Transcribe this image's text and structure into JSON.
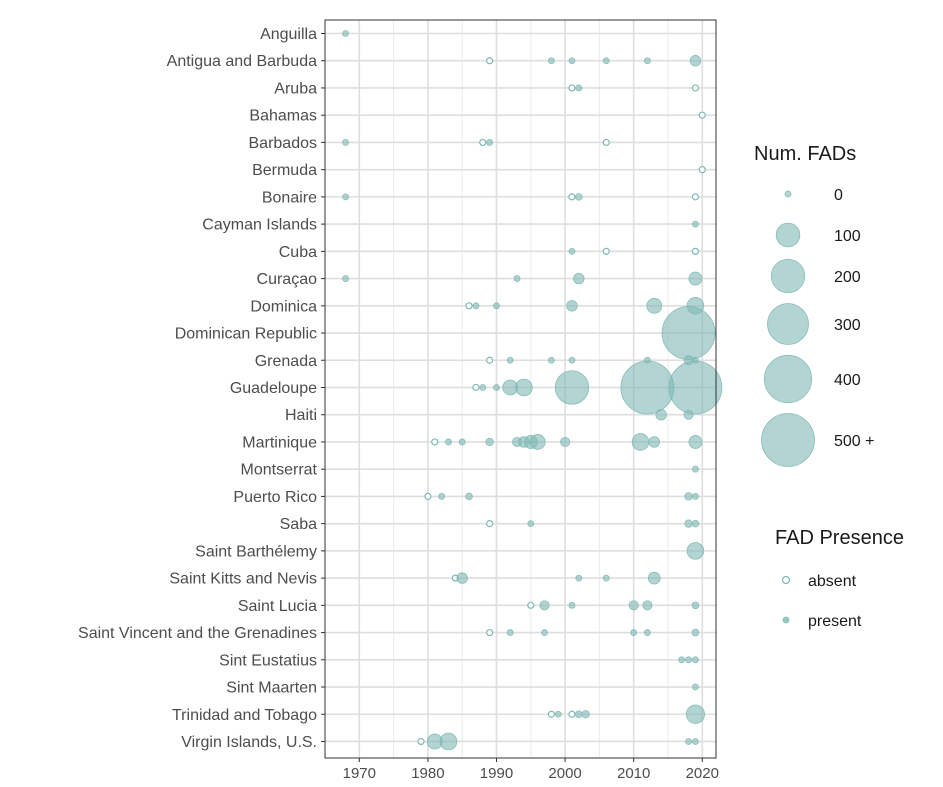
{
  "chart_data": {
    "type": "scatter",
    "title": "",
    "xlabel": "",
    "ylabel": "",
    "xlim": [
      1965,
      2022
    ],
    "x_ticks": [
      1970,
      1980,
      1990,
      2000,
      2010,
      2020
    ],
    "grid": true,
    "point_color": "#7fb8b4",
    "categories": [
      "Anguilla",
      "Antigua and Barbuda",
      "Aruba",
      "Bahamas",
      "Barbados",
      "Bermuda",
      "Bonaire",
      "Cayman Islands",
      "Cuba",
      "Curaçao",
      "Dominica",
      "Dominican Republic",
      "Grenada",
      "Guadeloupe",
      "Haiti",
      "Martinique",
      "Montserrat",
      "Puerto Rico",
      "Saba",
      "Saint Barthélemy",
      "Saint Kitts and Nevis",
      "Saint Lucia",
      "Saint Vincent and the Grenadines",
      "Sint Eustatius",
      "Sint Maarten",
      "Trinidad and Tobago",
      "Virgin Islands, U.S."
    ],
    "size_legend": {
      "title": "Num.   FADs",
      "items": [
        {
          "label": "0",
          "value": 0
        },
        {
          "label": "100",
          "value": 100
        },
        {
          "label": "200",
          "value": 200
        },
        {
          "label": "300",
          "value": 300
        },
        {
          "label": "400",
          "value": 400
        },
        {
          "label": "500 +",
          "value": 500
        }
      ]
    },
    "presence_legend": {
      "title": "FAD Presence",
      "items": [
        {
          "label": "absent",
          "key": "absent"
        },
        {
          "label": "present",
          "key": "present"
        }
      ]
    },
    "points": [
      {
        "country": "Anguilla",
        "year": 1968,
        "fads": 1,
        "presence": "present"
      },
      {
        "country": "Antigua and Barbuda",
        "year": 1989,
        "fads": 0,
        "presence": "absent"
      },
      {
        "country": "Antigua and Barbuda",
        "year": 1998,
        "fads": 1,
        "presence": "present"
      },
      {
        "country": "Antigua and Barbuda",
        "year": 2001,
        "fads": 2,
        "presence": "present"
      },
      {
        "country": "Antigua and Barbuda",
        "year": 2006,
        "fads": 2,
        "presence": "present"
      },
      {
        "country": "Antigua and Barbuda",
        "year": 2012,
        "fads": 2,
        "presence": "present"
      },
      {
        "country": "Antigua and Barbuda",
        "year": 2019,
        "fads": 20,
        "presence": "present"
      },
      {
        "country": "Aruba",
        "year": 2001,
        "fads": 0,
        "presence": "absent"
      },
      {
        "country": "Aruba",
        "year": 2002,
        "fads": 4,
        "presence": "present"
      },
      {
        "country": "Aruba",
        "year": 2019,
        "fads": 0,
        "presence": "absent"
      },
      {
        "country": "Bahamas",
        "year": 2020,
        "fads": 0,
        "presence": "absent"
      },
      {
        "country": "Barbados",
        "year": 1968,
        "fads": 1,
        "presence": "present"
      },
      {
        "country": "Barbados",
        "year": 1988,
        "fads": 0,
        "presence": "absent"
      },
      {
        "country": "Barbados",
        "year": 1989,
        "fads": 1,
        "presence": "present"
      },
      {
        "country": "Barbados",
        "year": 2006,
        "fads": 0,
        "presence": "absent"
      },
      {
        "country": "Bermuda",
        "year": 2020,
        "fads": 0,
        "presence": "absent"
      },
      {
        "country": "Bonaire",
        "year": 1968,
        "fads": 1,
        "presence": "present"
      },
      {
        "country": "Bonaire",
        "year": 2001,
        "fads": 0,
        "presence": "absent"
      },
      {
        "country": "Bonaire",
        "year": 2002,
        "fads": 8,
        "presence": "present"
      },
      {
        "country": "Bonaire",
        "year": 2019,
        "fads": 0,
        "presence": "absent"
      },
      {
        "country": "Cayman Islands",
        "year": 2019,
        "fads": 1,
        "presence": "present"
      },
      {
        "country": "Cuba",
        "year": 2001,
        "fads": 1,
        "presence": "present"
      },
      {
        "country": "Cuba",
        "year": 2006,
        "fads": 0,
        "presence": "absent"
      },
      {
        "country": "Cuba",
        "year": 2019,
        "fads": 0,
        "presence": "absent"
      },
      {
        "country": "Curaçao",
        "year": 1968,
        "fads": 1,
        "presence": "present"
      },
      {
        "country": "Curaçao",
        "year": 1993,
        "fads": 5,
        "presence": "present"
      },
      {
        "country": "Curaçao",
        "year": 2002,
        "fads": 20,
        "presence": "present"
      },
      {
        "country": "Curaçao",
        "year": 2019,
        "fads": 30,
        "presence": "present"
      },
      {
        "country": "Dominica",
        "year": 1986,
        "fads": 0,
        "presence": "absent"
      },
      {
        "country": "Dominica",
        "year": 1987,
        "fads": 4,
        "presence": "present"
      },
      {
        "country": "Dominica",
        "year": 1990,
        "fads": 2,
        "presence": "present"
      },
      {
        "country": "Dominica",
        "year": 2001,
        "fads": 20,
        "presence": "present"
      },
      {
        "country": "Dominica",
        "year": 2013,
        "fads": 40,
        "presence": "present"
      },
      {
        "country": "Dominica",
        "year": 2019,
        "fads": 50,
        "presence": "present"
      },
      {
        "country": "Dominican Republic",
        "year": 2018,
        "fads": 500,
        "presence": "present"
      },
      {
        "country": "Grenada",
        "year": 1989,
        "fads": 0,
        "presence": "absent"
      },
      {
        "country": "Grenada",
        "year": 1992,
        "fads": 3,
        "presence": "present"
      },
      {
        "country": "Grenada",
        "year": 1998,
        "fads": 1,
        "presence": "present"
      },
      {
        "country": "Grenada",
        "year": 2001,
        "fads": 1,
        "presence": "present"
      },
      {
        "country": "Grenada",
        "year": 2012,
        "fads": 1,
        "presence": "present"
      },
      {
        "country": "Grenada",
        "year": 2018,
        "fads": 15,
        "presence": "present"
      },
      {
        "country": "Grenada",
        "year": 2019,
        "fads": 4,
        "presence": "present"
      },
      {
        "country": "Guadeloupe",
        "year": 1987,
        "fads": 0,
        "presence": "absent"
      },
      {
        "country": "Guadeloupe",
        "year": 1988,
        "fads": 3,
        "presence": "present"
      },
      {
        "country": "Guadeloupe",
        "year": 1990,
        "fads": 2,
        "presence": "present"
      },
      {
        "country": "Guadeloupe",
        "year": 1992,
        "fads": 40,
        "presence": "present"
      },
      {
        "country": "Guadeloupe",
        "year": 1994,
        "fads": 50,
        "presence": "present"
      },
      {
        "country": "Guadeloupe",
        "year": 2001,
        "fads": 200,
        "presence": "present"
      },
      {
        "country": "Guadeloupe",
        "year": 2012,
        "fads": 500,
        "presence": "present"
      },
      {
        "country": "Guadeloupe",
        "year": 2019,
        "fads": 500,
        "presence": "present"
      },
      {
        "country": "Haiti",
        "year": 2014,
        "fads": 20,
        "presence": "present"
      },
      {
        "country": "Haiti",
        "year": 2018,
        "fads": 15,
        "presence": "present"
      },
      {
        "country": "Martinique",
        "year": 1981,
        "fads": 0,
        "presence": "absent"
      },
      {
        "country": "Martinique",
        "year": 1983,
        "fads": 2,
        "presence": "present"
      },
      {
        "country": "Martinique",
        "year": 1985,
        "fads": 2,
        "presence": "present"
      },
      {
        "country": "Martinique",
        "year": 1989,
        "fads": 10,
        "presence": "present"
      },
      {
        "country": "Martinique",
        "year": 1993,
        "fads": 15,
        "presence": "present"
      },
      {
        "country": "Martinique",
        "year": 1994,
        "fads": 20,
        "presence": "present"
      },
      {
        "country": "Martinique",
        "year": 1995,
        "fads": 30,
        "presence": "present"
      },
      {
        "country": "Martinique",
        "year": 1996,
        "fads": 40,
        "presence": "present"
      },
      {
        "country": "Martinique",
        "year": 2000,
        "fads": 15,
        "presence": "present"
      },
      {
        "country": "Martinique",
        "year": 2011,
        "fads": 50,
        "presence": "present"
      },
      {
        "country": "Martinique",
        "year": 2013,
        "fads": 20,
        "presence": "present"
      },
      {
        "country": "Martinique",
        "year": 2019,
        "fads": 30,
        "presence": "present"
      },
      {
        "country": "Montserrat",
        "year": 2019,
        "fads": 1,
        "presence": "present"
      },
      {
        "country": "Puerto Rico",
        "year": 1980,
        "fads": 0,
        "presence": "absent"
      },
      {
        "country": "Puerto Rico",
        "year": 1982,
        "fads": 2,
        "presence": "present"
      },
      {
        "country": "Puerto Rico",
        "year": 1986,
        "fads": 8,
        "presence": "present"
      },
      {
        "country": "Puerto Rico",
        "year": 2018,
        "fads": 10,
        "presence": "present"
      },
      {
        "country": "Puerto Rico",
        "year": 2019,
        "fads": 2,
        "presence": "present"
      },
      {
        "country": "Saba",
        "year": 1989,
        "fads": 0,
        "presence": "absent"
      },
      {
        "country": "Saba",
        "year": 1995,
        "fads": 2,
        "presence": "present"
      },
      {
        "country": "Saba",
        "year": 2018,
        "fads": 10,
        "presence": "present"
      },
      {
        "country": "Saba",
        "year": 2019,
        "fads": 8,
        "presence": "present"
      },
      {
        "country": "Saint Barthélemy",
        "year": 2019,
        "fads": 50,
        "presence": "present"
      },
      {
        "country": "Saint Kitts and Nevis",
        "year": 1984,
        "fads": 0,
        "presence": "absent"
      },
      {
        "country": "Saint Kitts and Nevis",
        "year": 1985,
        "fads": 20,
        "presence": "present"
      },
      {
        "country": "Saint Kitts and Nevis",
        "year": 2002,
        "fads": 2,
        "presence": "present"
      },
      {
        "country": "Saint Kitts and Nevis",
        "year": 2006,
        "fads": 2,
        "presence": "present"
      },
      {
        "country": "Saint Kitts and Nevis",
        "year": 2013,
        "fads": 25,
        "presence": "present"
      },
      {
        "country": "Saint Lucia",
        "year": 1995,
        "fads": 0,
        "presence": "absent"
      },
      {
        "country": "Saint Lucia",
        "year": 1997,
        "fads": 15,
        "presence": "present"
      },
      {
        "country": "Saint Lucia",
        "year": 2001,
        "fads": 1,
        "presence": "present"
      },
      {
        "country": "Saint Lucia",
        "year": 2010,
        "fads": 15,
        "presence": "present"
      },
      {
        "country": "Saint Lucia",
        "year": 2012,
        "fads": 15,
        "presence": "present"
      },
      {
        "country": "Saint Lucia",
        "year": 2019,
        "fads": 8,
        "presence": "present"
      },
      {
        "country": "Saint Vincent and the Grenadines",
        "year": 1989,
        "fads": 0,
        "presence": "absent"
      },
      {
        "country": "Saint Vincent and the Grenadines",
        "year": 1992,
        "fads": 5,
        "presence": "present"
      },
      {
        "country": "Saint Vincent and the Grenadines",
        "year": 1997,
        "fads": 2,
        "presence": "present"
      },
      {
        "country": "Saint Vincent and the Grenadines",
        "year": 2010,
        "fads": 2,
        "presence": "present"
      },
      {
        "country": "Saint Vincent and the Grenadines",
        "year": 2012,
        "fads": 2,
        "presence": "present"
      },
      {
        "country": "Saint Vincent and the Grenadines",
        "year": 2019,
        "fads": 8,
        "presence": "present"
      },
      {
        "country": "Sint Eustatius",
        "year": 2017,
        "fads": 5,
        "presence": "present"
      },
      {
        "country": "Sint Eustatius",
        "year": 2018,
        "fads": 2,
        "presence": "present"
      },
      {
        "country": "Sint Eustatius",
        "year": 2019,
        "fads": 5,
        "presence": "present"
      },
      {
        "country": "Sint Maarten",
        "year": 2019,
        "fads": 1,
        "presence": "present"
      },
      {
        "country": "Trinidad and Tobago",
        "year": 1998,
        "fads": 0,
        "presence": "absent"
      },
      {
        "country": "Trinidad and Tobago",
        "year": 1999,
        "fads": 3,
        "presence": "present"
      },
      {
        "country": "Trinidad and Tobago",
        "year": 2001,
        "fads": 0,
        "presence": "absent"
      },
      {
        "country": "Trinidad and Tobago",
        "year": 2002,
        "fads": 8,
        "presence": "present"
      },
      {
        "country": "Trinidad and Tobago",
        "year": 2003,
        "fads": 10,
        "presence": "present"
      },
      {
        "country": "Trinidad and Tobago",
        "year": 2019,
        "fads": 60,
        "presence": "present"
      },
      {
        "country": "Virgin Islands, U.S.",
        "year": 1979,
        "fads": 0,
        "presence": "absent"
      },
      {
        "country": "Virgin Islands, U.S.",
        "year": 1981,
        "fads": 40,
        "presence": "present"
      },
      {
        "country": "Virgin Islands, U.S.",
        "year": 1983,
        "fads": 50,
        "presence": "present"
      },
      {
        "country": "Virgin Islands, U.S.",
        "year": 2018,
        "fads": 5,
        "presence": "present"
      },
      {
        "country": "Virgin Islands, U.S.",
        "year": 2019,
        "fads": 5,
        "presence": "present"
      }
    ]
  }
}
